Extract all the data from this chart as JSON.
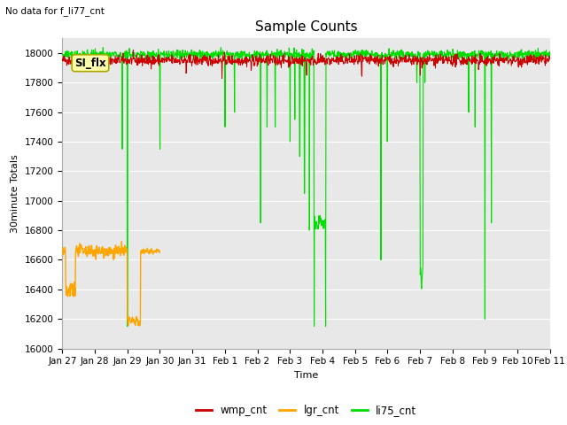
{
  "title": "Sample Counts",
  "top_left_text": "No data for f_li77_cnt",
  "ylabel": "30minute Totals",
  "xlabel": "Time",
  "ylim": [
    16000,
    18100
  ],
  "fig_bg_color": "#ffffff",
  "plot_bg_color": "#e8e8e8",
  "grid_color": "#ffffff",
  "annotation_text": "SI_flx",
  "wmp_color": "#cc0000",
  "lgr_color": "#ffa500",
  "li75_color": "#00dd00",
  "legend_entries": [
    "wmp_cnt",
    "lgr_cnt",
    "li75_cnt"
  ],
  "xtick_labels": [
    "Jan 27",
    "Jan 28",
    "Jan 29",
    "Jan 30",
    "Jan 31",
    "Feb 1",
    "Feb 2",
    "Feb 3",
    "Feb 4",
    "Feb 5",
    "Feb 6",
    "Feb 7",
    "Feb 8",
    "Feb 9",
    "Feb 10",
    "Feb 11"
  ],
  "num_days": 15
}
